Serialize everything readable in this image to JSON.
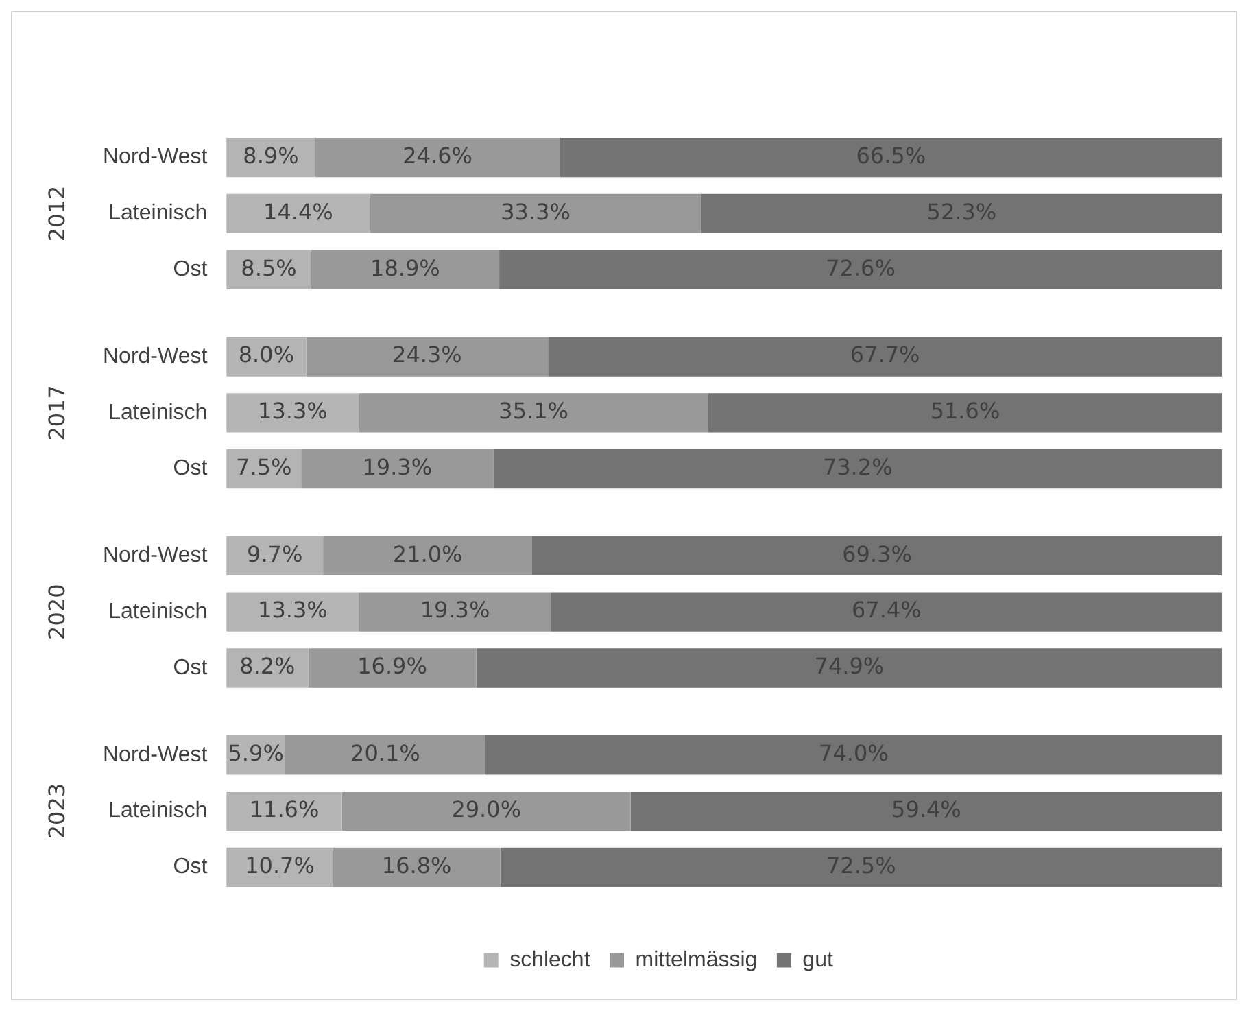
{
  "chart_data": {
    "type": "bar",
    "orientation": "horizontal",
    "stacked": true,
    "legend": "bottom",
    "grid": false,
    "categories": [
      "Nord-West",
      "Lateinisch",
      "Ost",
      "Nord-West",
      "Lateinisch",
      "Ost",
      "Nord-West",
      "Lateinisch",
      "Ost",
      "Nord-West",
      "Lateinisch",
      "Ost"
    ],
    "annotations": [
      "2012",
      "2017",
      "2020",
      "2023"
    ],
    "series": [
      {
        "name": "schlecht",
        "color": "#b4b4b4",
        "values": [
          8.9,
          14.4,
          8.5,
          8.0,
          13.3,
          7.5,
          9.7,
          13.3,
          8.2,
          5.9,
          11.6,
          10.7
        ],
        "value_labels": [
          "8.9%",
          "14.4%",
          "8.5%",
          "8.0%",
          "13.3%",
          "7.5%",
          "9.7%",
          "13.3%",
          "8.2%",
          "5.9%",
          "11.6%",
          "10.7%"
        ]
      },
      {
        "name": "mittelmässig",
        "color": "#999999",
        "values": [
          24.6,
          33.3,
          18.9,
          24.3,
          35.1,
          19.3,
          21.0,
          19.3,
          16.9,
          20.1,
          29.0,
          16.8
        ],
        "value_labels": [
          "24.6%",
          "33.3%",
          "18.9%",
          "24.3%",
          "35.1%",
          "19.3%",
          "21.0%",
          "19.3%",
          "16.9%",
          "20.1%",
          "29.0%",
          "16.8%"
        ]
      },
      {
        "name": "gut",
        "color": "#737373",
        "values": [
          66.5,
          52.3,
          72.6,
          67.7,
          51.6,
          73.2,
          69.3,
          67.4,
          74.9,
          74.0,
          59.4,
          72.5
        ],
        "value_labels": [
          "66.5%",
          "52.3%",
          "72.6%",
          "67.7%",
          "51.6%",
          "73.2%",
          "69.3%",
          "67.4%",
          "74.9%",
          "74.0%",
          "59.4%",
          "72.5%"
        ]
      }
    ]
  }
}
